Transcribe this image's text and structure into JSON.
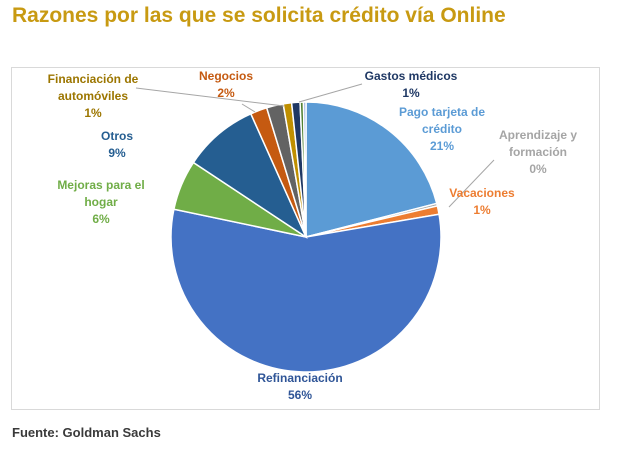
{
  "title": "Razones por las que se solicita crédito vía Online",
  "source": "Fuente: Goldman Sachs",
  "chart_data": {
    "type": "pie",
    "start_angle_deg": 0,
    "direction": "clockwise",
    "slices": [
      {
        "name": "Pago tarjeta de crédito",
        "label_lines": [
          "Pago tarjeta de",
          "crédito"
        ],
        "value": 21,
        "value_label": "21%",
        "color": "#5b9bd5",
        "label_color": "#5b9bd5"
      },
      {
        "name": "Aprendizaje y formación",
        "label_lines": [
          "Aprendizaje y",
          "formación"
        ],
        "value": 0.3,
        "value_label": "0%",
        "color": "#a5a5a5",
        "label_color": "#a5a5a5"
      },
      {
        "name": "Vacaciones",
        "label_lines": [
          "Vacaciones"
        ],
        "value": 1,
        "value_label": "1%",
        "color": "#ed7d31",
        "label_color": "#ed7d31"
      },
      {
        "name": "Refinanciación",
        "label_lines": [
          "Refinanciación"
        ],
        "value": 56,
        "value_label": "56%",
        "color": "#4472c4",
        "label_color": "#2f5597"
      },
      {
        "name": "Mejoras para el hogar",
        "label_lines": [
          "Mejoras para el",
          "hogar"
        ],
        "value": 6,
        "value_label": "6%",
        "color": "#70ad47",
        "label_color": "#70ad47"
      },
      {
        "name": "Otros",
        "label_lines": [
          "Otros"
        ],
        "value": 9,
        "value_label": "9%",
        "color": "#255e91",
        "label_color": "#255e91"
      },
      {
        "name": "Negocios",
        "label_lines": [
          "Negocios"
        ],
        "value": 2,
        "value_label": "2%",
        "color": "#c55a11",
        "label_color": "#c55a11"
      },
      {
        "name": "Otros (gris)",
        "label_lines": [],
        "value": 2,
        "value_label": "",
        "color": "#636363",
        "label_color": "#636363"
      },
      {
        "name": "Financiación de automóviles",
        "label_lines": [
          "Financiación de",
          "automóviles"
        ],
        "value": 1,
        "value_label": "1%",
        "color": "#bf8f00",
        "label_color": "#9c7600"
      },
      {
        "name": "Gastos médicos",
        "label_lines": [
          "Gastos médicos"
        ],
        "value": 1,
        "value_label": "1%",
        "color": "#1f3864",
        "label_color": "#1f3864"
      },
      {
        "name": "Otros (verde)",
        "label_lines": [],
        "value": 0.4,
        "value_label": "",
        "color": "#548235",
        "label_color": "#548235"
      },
      {
        "name": "Otros (azul claro)",
        "label_lines": [],
        "value": 0.3,
        "value_label": "",
        "color": "#8faadc",
        "label_color": "#8faadc"
      }
    ]
  }
}
